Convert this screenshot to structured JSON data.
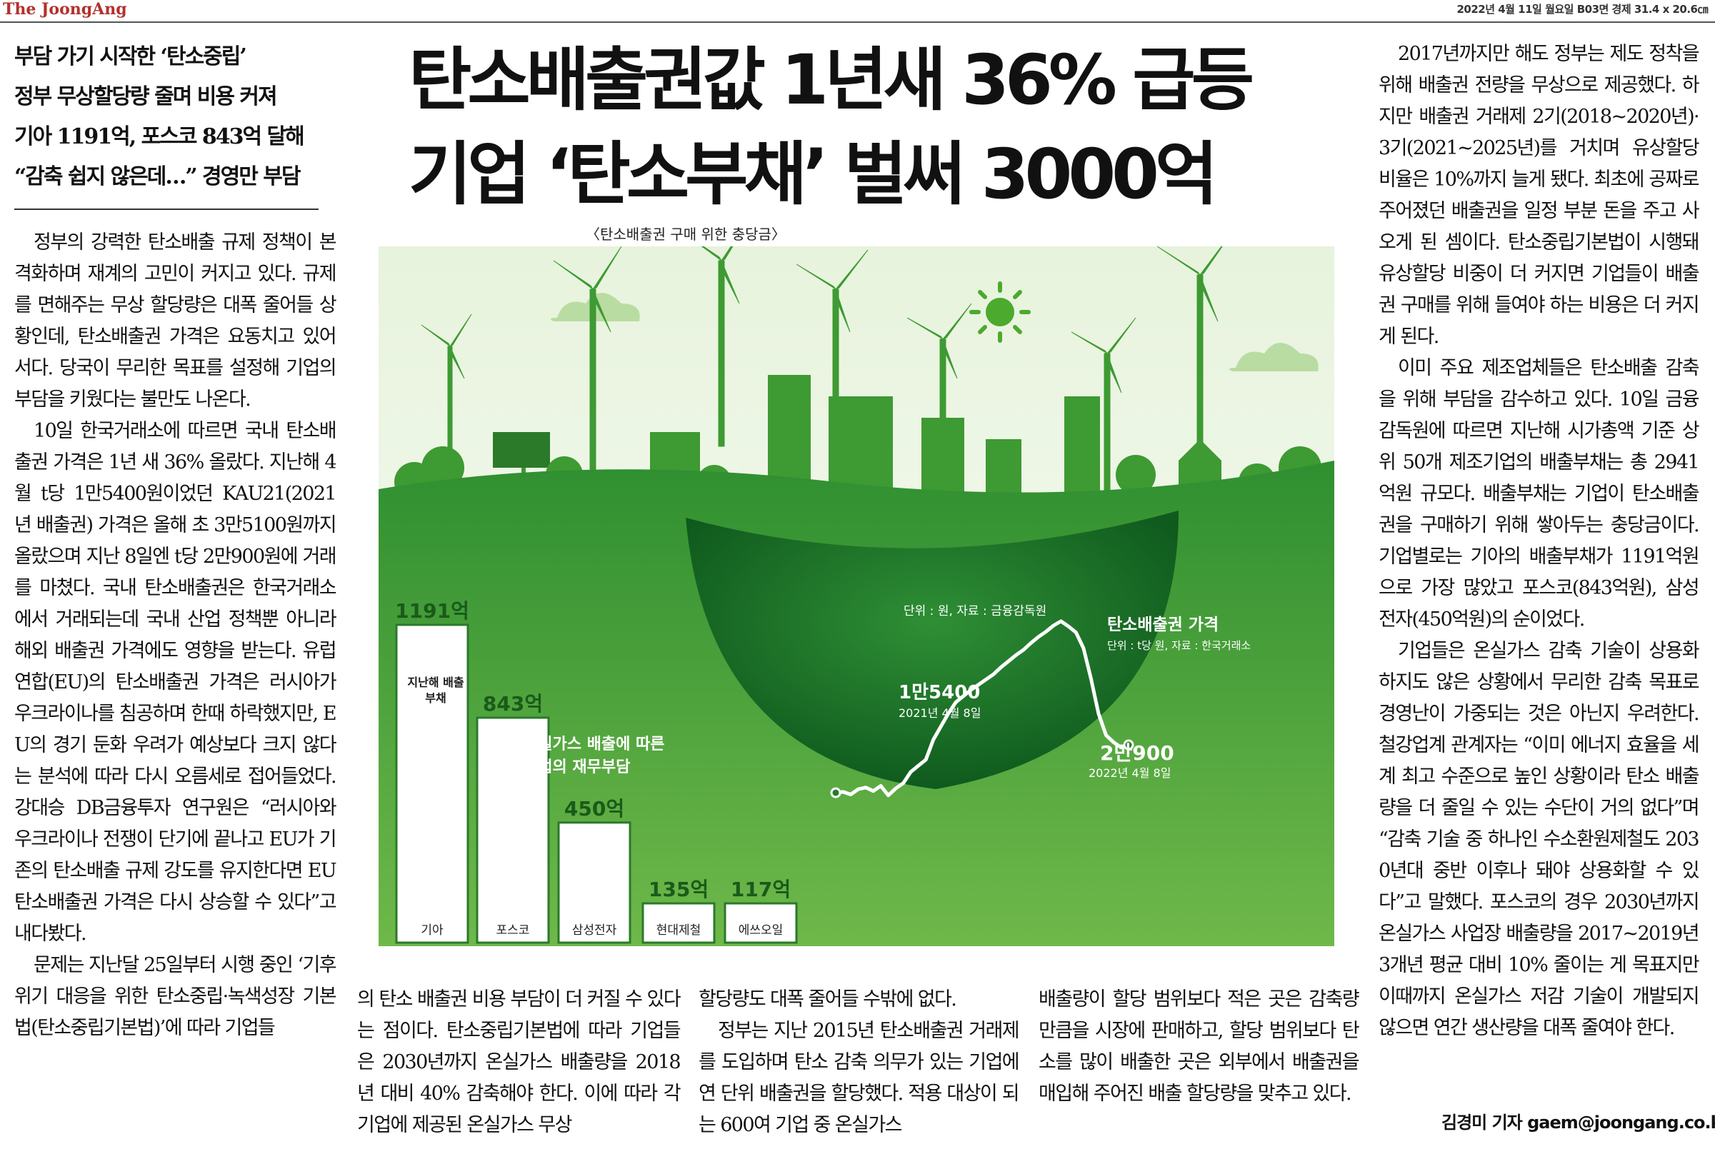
{
  "masthead": "The JoongAng",
  "page_info": "2022년 4월 11일 월요일 B03면 경제 31.4 x 20.6㎝",
  "subheads": [
    "부담 가기 시작한 ‘탄소중립’",
    "정부 무상할당량 줄며 비용 커져",
    "기아 1191억, 포스코 843억 달해",
    "“감축 쉽지 않은데…” 경영만 부담"
  ],
  "headline": [
    "탄소배출권값 1년새 36% 급등",
    "기업 ‘탄소부채’ 벌써 3000억"
  ],
  "caption": "〈탄소배출권 구매 위한 충당금〉",
  "col1": [
    "정부의 강력한 탄소배출 규제 정책이 본격화하며 재계의 고민이 커지고 있다. 규제를 면해주는 무상 할당량은 대폭 줄어들 상황인데, 탄소배출권 가격은 요동치고 있어서다. 당국이 무리한 목표를 설정해 기업의 부담을 키웠다는 불만도 나온다.",
    "10일 한국거래소에 따르면 국내 탄소배출권 가격은 1년 새 36% 올랐다. 지난해 4월 t당 1만5400원이었던 KAU21(2021년 배출권) 가격은 올해 초 3만5100원까지 올랐으며 지난 8일엔 t당 2만900원에 거래를 마쳤다. 국내 탄소배출권은 한국거래소에서 거래되는데 국내 산업 정책뿐 아니라 해외 배출권 가격에도 영향을 받는다. 유럽연합(EU)의 탄소배출권 가격은 러시아가 우크라이나를 침공하며 한때 하락했지만, EU의 경기 둔화 우려가 예상보다 크지 않다는 분석에 따라 다시 오름세로 접어들었다. 강대승 DB금융투자 연구원은 “러시아와 우크라이나 전쟁이 단기에 끝나고 EU가 기존의 탄소배출 규제 강도를 유지한다면 EU 탄소배출권 가격은 다시 상승할 수 있다”고 내다봤다.",
    "문제는 지난달 25일부터 시행 중인 ‘기후위기 대응을 위한 탄소중립·녹색성장 기본법(탄소중립기본법)’에 따라 기업들"
  ],
  "col2": "의 탄소 배출권 비용 부담이 더 커질 수 있다는 점이다. 탄소중립기본법에 따라 기업들은 2030년까지 온실가스 배출량을 2018년 대비 40% 감축해야 한다. 이에 따라 각 기업에 제공된 온실가스 무상",
  "col3": [
    "할당량도 대폭 줄어들 수밖에 없다.",
    "정부는 지난 2015년 탄소배출권 거래제를 도입하며 탄소 감축 의무가 있는 기업에 연 단위 배출권을 할당했다. 적용 대상이 되는 600여 기업 중 온실가스"
  ],
  "col4": "배출량이 할당 범위보다 적은 곳은 감축량만큼을 시장에 판매하고, 할당 범위보다 탄소를 많이 배출한 곳은 외부에서 배출권을 매입해 주어진 배출 할당량을 맞추고 있다.",
  "col5": [
    "2017년까지만 해도 정부는 제도 정착을 위해 배출권 전량을 무상으로 제공했다. 하지만 배출권 거래제 2기(2018~2020년)·3기(2021~2025년)를 거치며 유상할당 비율은 10%까지 늘게 됐다. 최초에 공짜로 주어졌던 배출권을 일정 부분 돈을 주고 사 오게 된 셈이다. 탄소중립기본법이 시행돼 유상할당 비중이 더 커지면 기업들이 배출권 구매를 위해 들여야 하는 비용은 더 커지게 된다.",
    "이미 주요 제조업체들은 탄소배출 감축을 위해 부담을 감수하고 있다. 10일 금융감독원에 따르면 지난해 시가총액 기준 상위 50개 제조기업의 배출부채는 총 2941억원 규모다. 배출부채는 기업이 탄소배출권을 구매하기 위해 쌓아두는 충당금이다. 기업별로는 기아의 배출부채가 1191억원으로 가장 많았고 포스코(843억원), 삼성전자(450억원)의 순이었다.",
    "기업들은 온실가스 감축 기술이 상용화하지도 않은 상황에서 무리한 감축 목표로 경영난이 가중되는 것은 아닌지 우려한다. 철강업계 관계자는 “이미 에너지 효율을 세계 최고 수준으로 높인 상황이라 탄소 배출량을 더 줄일 수 있는 수단이 거의 없다”며 “감축 기술 중 하나인 수소환원제철도 2030년대 중반 이후나 돼야 상용화할 수 있다”고 말했다. 포스코의 경우 2030년까지 온실가스 사업장 배출량을 2017~2019년 3개년 평균 대비 10% 줄이는 게 목표지만 이때까지 온실가스 저감 기술이 개발되지 않으면 연간 생산량을 대폭 줄여야 한다."
  ],
  "byline": "김경미 기자 gaem@joongang.co.kr",
  "colors": {
    "green_dark": "#1f7a2a",
    "green": "#3f9e3a",
    "green_light": "#8fc95a",
    "masthead_red": "#b3302d"
  },
  "chart_data": [
    {
      "type": "bar",
      "title": "온실가스 배출에 따른 기업의 재무부담",
      "bar_label": "지난해 배출부채",
      "categories": [
        "기아",
        "포스코",
        "삼성전자",
        "현대제철",
        "에쓰오일"
      ],
      "value_labels": [
        "1191억",
        "843억",
        "450억",
        "135억",
        "117억"
      ],
      "values": [
        1191,
        843,
        450,
        135,
        117
      ],
      "unit_note": "단위 : 원, 자료 : 금융감독원"
    },
    {
      "type": "line",
      "title": "탄소배출권 가격",
      "unit_note": "단위 : t당 원, 자료 : 한국거래소",
      "start": {
        "value_label": "1만5400",
        "date_label": "2021년 4월 8일",
        "value": 15400
      },
      "end": {
        "value_label": "2만900",
        "date_label": "2022년 4월 8일",
        "value": 20900
      },
      "peak_value": 35100,
      "series": [
        15400,
        15500,
        15200,
        15800,
        16000,
        15600,
        16200,
        15100,
        15900,
        16500,
        17800,
        18500,
        19200,
        21500,
        23000,
        24500,
        25800,
        26500,
        27200,
        27800,
        28400,
        29000,
        29800,
        30500,
        31200,
        31800,
        32600,
        33300,
        33900,
        34600,
        35100,
        34500,
        33800,
        32000,
        28500,
        24500,
        22000,
        21200,
        20600,
        20900
      ]
    }
  ]
}
